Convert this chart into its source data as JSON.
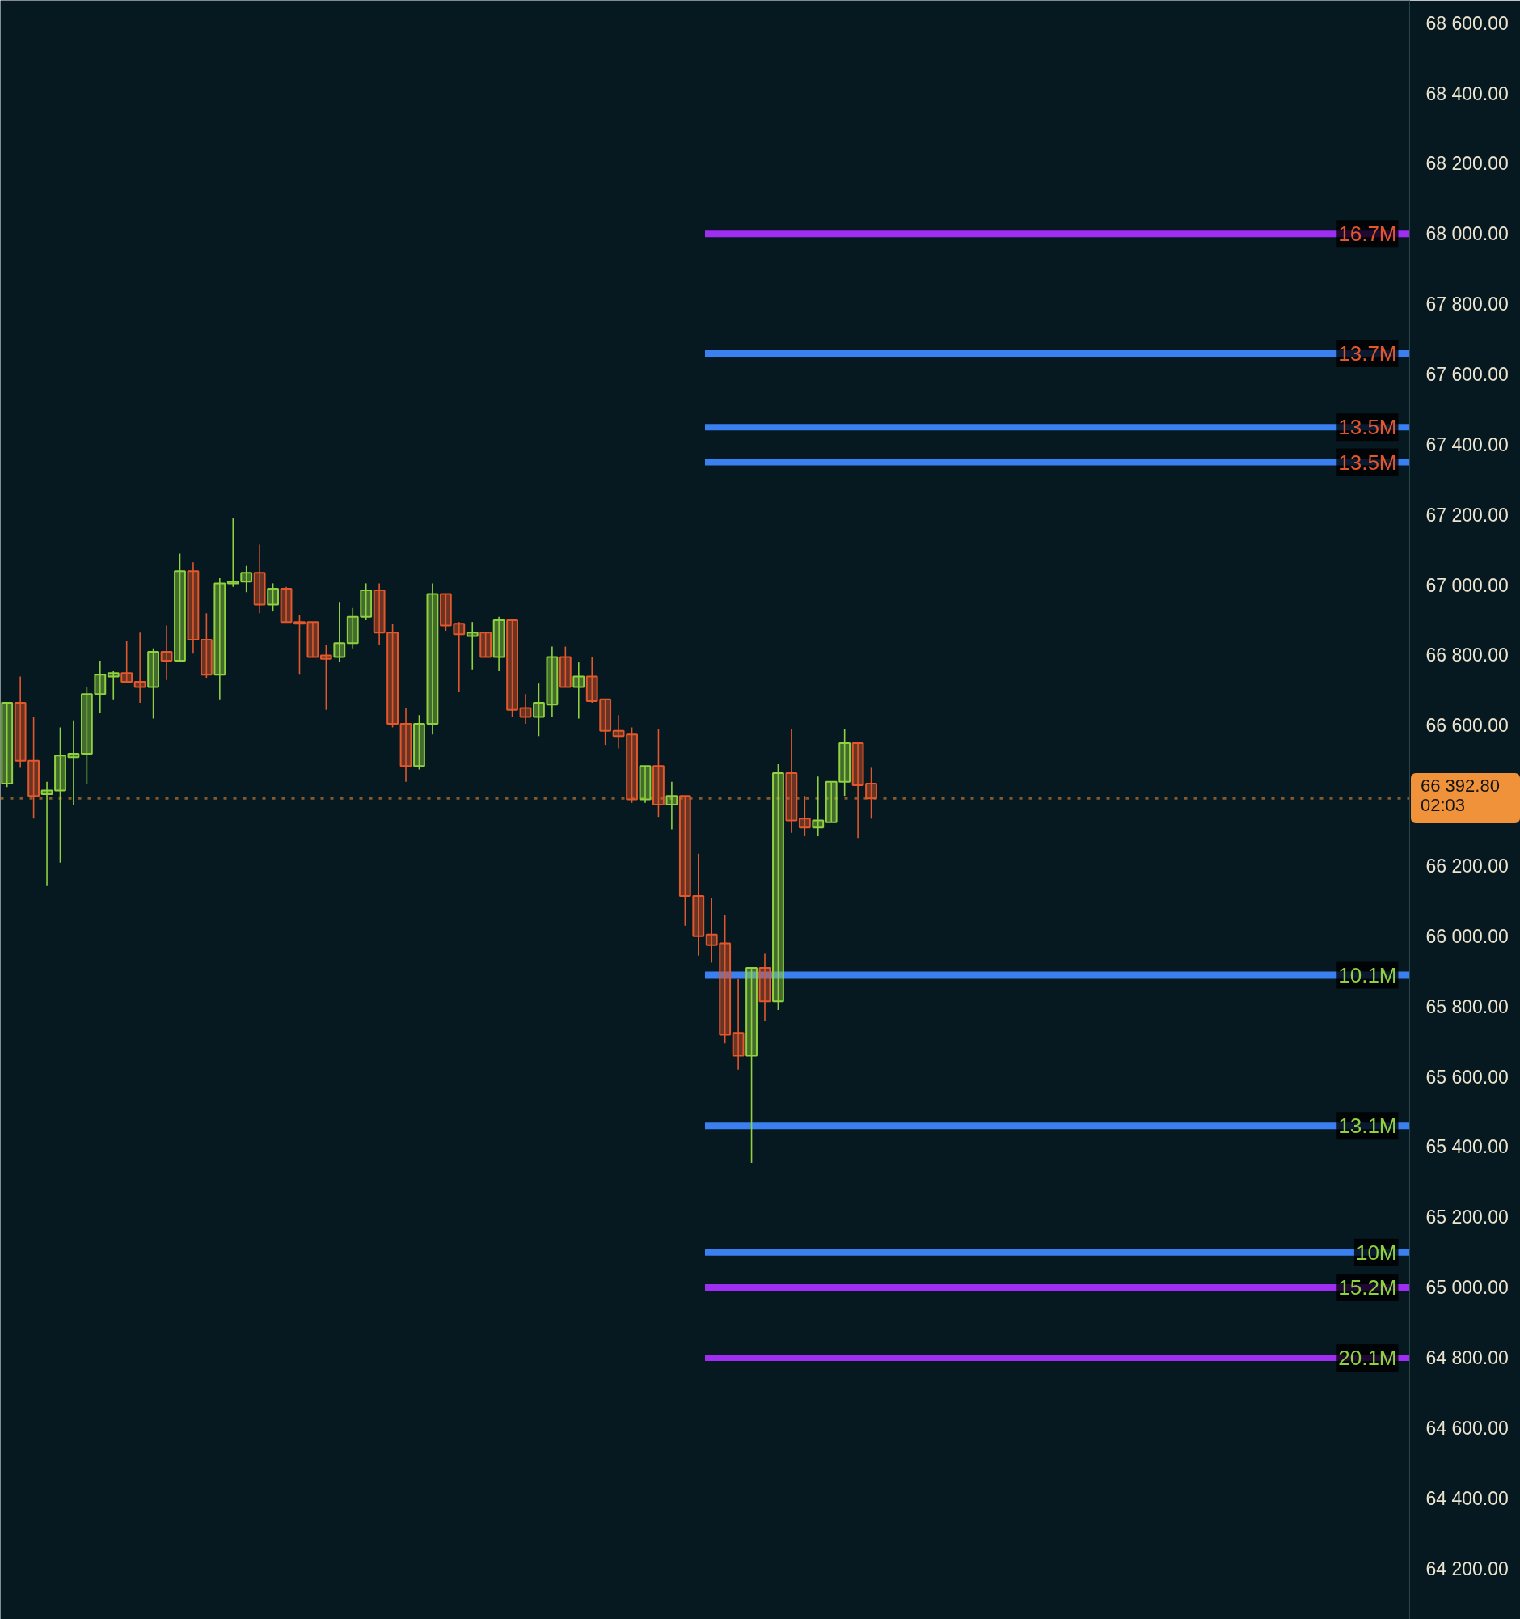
{
  "chart_data": {
    "type": "candlestick",
    "categories": [
      null,
      null,
      null,
      null,
      null,
      null,
      null,
      null,
      null,
      null,
      null,
      null,
      null,
      null,
      null,
      null,
      null,
      null,
      null,
      null,
      null,
      null,
      null,
      null,
      null,
      null,
      null,
      null,
      null,
      null,
      null,
      null,
      null,
      null,
      null,
      null,
      null,
      null,
      null,
      null,
      null,
      null,
      null,
      null,
      null,
      null,
      null,
      null,
      null,
      null,
      null,
      null,
      null,
      null,
      null,
      null,
      null,
      null,
      null,
      null,
      null,
      null,
      null,
      null,
      null,
      null,
      null,
      null,
      null,
      null,
      null,
      null,
      null,
      null,
      null,
      null,
      null,
      null,
      null,
      null,
      null,
      null,
      null,
      null,
      null,
      null,
      null,
      null,
      null,
      null,
      null,
      null,
      null,
      null,
      null,
      null,
      null,
      null,
      null,
      null,
      null,
      null,
      null,
      null,
      null,
      null
    ],
    "ohlc": [
      [
        66435,
        66665,
        66425,
        66665
      ],
      [
        66665,
        66740,
        66480,
        66500
      ],
      [
        66500,
        66625,
        66335,
        66400
      ],
      [
        66405,
        66440,
        66145,
        66415
      ],
      [
        66415,
        66595,
        66210,
        66515
      ],
      [
        66510,
        66615,
        66375,
        66520
      ],
      [
        66520,
        66710,
        66435,
        66690
      ],
      [
        66690,
        66785,
        66635,
        66745
      ],
      [
        66740,
        66755,
        66675,
        66750
      ],
      [
        66750,
        66840,
        66725,
        66725
      ],
      [
        66725,
        66865,
        66665,
        66710
      ],
      [
        66710,
        66820,
        66620,
        66810
      ],
      [
        66810,
        66885,
        66730,
        66785
      ],
      [
        66785,
        67090,
        66785,
        67040
      ],
      [
        67040,
        67065,
        66805,
        66845
      ],
      [
        66845,
        66920,
        66735,
        66745
      ],
      [
        66745,
        67020,
        66675,
        67005
      ],
      [
        67005,
        67190,
        66995,
        67010
      ],
      [
        67010,
        67055,
        66980,
        67035
      ],
      [
        67035,
        67115,
        66920,
        66945
      ],
      [
        66945,
        67005,
        66925,
        66990
      ],
      [
        66990,
        66995,
        66895,
        66895
      ],
      [
        66895,
        66915,
        66745,
        66890
      ],
      [
        66895,
        66895,
        66795,
        66795
      ],
      [
        66800,
        66830,
        66645,
        66790
      ],
      [
        66795,
        66950,
        66780,
        66835
      ],
      [
        66835,
        66935,
        66820,
        66910
      ],
      [
        66910,
        67005,
        66900,
        66985
      ],
      [
        66985,
        67005,
        66830,
        66865
      ],
      [
        66865,
        66890,
        66595,
        66605
      ],
      [
        66605,
        66650,
        66440,
        66485
      ],
      [
        66485,
        66630,
        66475,
        66605
      ],
      [
        66605,
        67005,
        66575,
        66975
      ],
      [
        66975,
        66975,
        66870,
        66885
      ],
      [
        66890,
        66895,
        66695,
        66860
      ],
      [
        66855,
        66895,
        66760,
        66865
      ],
      [
        66865,
        66865,
        66795,
        66795
      ],
      [
        66795,
        66910,
        66755,
        66900
      ],
      [
        66900,
        66900,
        66625,
        66645
      ],
      [
        66650,
        66690,
        66605,
        66625
      ],
      [
        66625,
        66720,
        66570,
        66665
      ],
      [
        66660,
        66825,
        66625,
        66795
      ],
      [
        66795,
        66825,
        66710,
        66710
      ],
      [
        66710,
        66780,
        66620,
        66740
      ],
      [
        66740,
        66795,
        66665,
        66670
      ],
      [
        66675,
        66675,
        66545,
        66585
      ],
      [
        66585,
        66630,
        66535,
        66570
      ],
      [
        66575,
        66595,
        66380,
        66390
      ],
      [
        66390,
        66485,
        66380,
        66485
      ],
      [
        66485,
        66590,
        66340,
        66375
      ],
      [
        66375,
        66440,
        66305,
        66400
      ],
      [
        66400,
        66400,
        66030,
        66115
      ],
      [
        66115,
        66235,
        65945,
        66000
      ],
      [
        66005,
        66110,
        65925,
        65975
      ],
      [
        65980,
        66060,
        65695,
        65720
      ],
      [
        65725,
        65880,
        65620,
        65660
      ],
      [
        65660,
        65910,
        65355,
        65910
      ],
      [
        65910,
        65950,
        65760,
        65815
      ],
      [
        65815,
        66490,
        65790,
        66465
      ],
      [
        66465,
        66590,
        66295,
        66330
      ],
      [
        66335,
        66400,
        66285,
        66310
      ],
      [
        66310,
        66455,
        66285,
        66330
      ],
      [
        66325,
        66440,
        66325,
        66440
      ],
      [
        66440,
        66590,
        66400,
        66550
      ],
      [
        66550,
        66550,
        66280,
        66430
      ],
      [
        66435,
        66480,
        66335,
        66392.8
      ],
      null,
      null,
      null,
      null,
      null,
      null,
      null,
      null,
      null,
      null,
      null,
      null,
      null,
      null,
      null,
      null,
      null,
      null,
      null,
      null,
      null,
      null,
      null,
      null,
      null,
      null,
      null,
      null,
      null,
      null,
      null,
      null,
      null,
      null,
      null,
      null,
      null,
      null,
      null,
      null
    ],
    "colors": [
      "#8fd13f",
      "#e2572b",
      "#e2572b",
      "#8fd13f",
      "#8fd13f",
      "#8fd13f",
      "#8fd13f",
      "#8fd13f",
      "#8fd13f",
      "#e2572b",
      "#e2572b",
      "#8fd13f",
      "#e2572b",
      "#8fd13f",
      "#e2572b",
      "#e2572b",
      "#8fd13f",
      "#8fd13f",
      "#8fd13f",
      "#e2572b",
      "#8fd13f",
      "#e2572b",
      "#e2572b",
      "#e2572b",
      "#e2572b",
      "#8fd13f",
      "#8fd13f",
      "#8fd13f",
      "#e2572b",
      "#e2572b",
      "#e2572b",
      "#8fd13f",
      "#8fd13f",
      "#e2572b",
      "#e2572b",
      "#8fd13f",
      "#e2572b",
      "#8fd13f",
      "#e2572b",
      "#e2572b",
      "#8fd13f",
      "#8fd13f",
      "#e2572b",
      "#8fd13f",
      "#e2572b",
      "#e2572b",
      "#e2572b",
      "#e2572b",
      "#8fd13f",
      "#e2572b",
      "#8fd13f",
      "#e2572b",
      "#e2572b",
      "#e2572b",
      "#e2572b",
      "#e2572b",
      "#8fd13f",
      "#e2572b",
      "#8fd13f",
      "#e2572b",
      "#e2572b",
      "#8fd13f",
      "#8fd13f",
      "#8fd13f",
      "#e2572b",
      "#e2572b",
      null,
      null,
      null,
      null,
      null,
      null,
      null,
      null,
      null,
      null,
      null,
      null,
      null,
      null,
      null,
      null,
      null,
      null,
      null,
      null,
      null,
      null,
      null,
      null,
      null,
      null,
      null,
      null,
      null,
      null,
      null,
      null,
      null,
      null,
      null,
      null,
      null,
      null,
      null,
      null
    ],
    "ylim": [
      64055,
      68665
    ],
    "yticks": [
      {
        "value": 64200,
        "label": "64 200.00"
      },
      {
        "value": 64400,
        "label": "64 400.00"
      },
      {
        "value": 64600,
        "label": "64 600.00"
      },
      {
        "value": 64800,
        "label": "64 800.00"
      },
      {
        "value": 65000,
        "label": "65 000.00"
      },
      {
        "value": 65200,
        "label": "65 200.00"
      },
      {
        "value": 65400,
        "label": "65 400.00"
      },
      {
        "value": 65600,
        "label": "65 600.00"
      },
      {
        "value": 65800,
        "label": "65 800.00"
      },
      {
        "value": 66000,
        "label": "66 000.00"
      },
      {
        "value": 66200,
        "label": "66 200.00"
      },
      {
        "value": 66400,
        "label": null
      },
      {
        "value": 66600,
        "label": "66 600.00"
      },
      {
        "value": 66800,
        "label": "66 800.00"
      },
      {
        "value": 67000,
        "label": "67 000.00"
      },
      {
        "value": 67200,
        "label": "67 200.00"
      },
      {
        "value": 67400,
        "label": "67 400.00"
      },
      {
        "value": 67600,
        "label": "67 600.00"
      },
      {
        "value": 67800,
        "label": "67 800.00"
      },
      {
        "value": 68000,
        "label": "68 000.00"
      },
      {
        "value": 68200,
        "label": "68 200.00"
      },
      {
        "value": 68400,
        "label": "68 400.00"
      },
      {
        "value": 68600,
        "label": "68 600.00"
      }
    ],
    "ref_lines": [
      {
        "axis": "y",
        "value": 68000,
        "label": "16.7M",
        "color": "#a02ef2",
        "line_style": "solid"
      },
      {
        "axis": "y",
        "value": 67660,
        "label": "13.7M",
        "color": "#3a80f0",
        "line_style": "solid"
      },
      {
        "axis": "y",
        "value": 67450,
        "label": "13.5M",
        "color": "#3a80f0",
        "line_style": "solid"
      },
      {
        "axis": "y",
        "value": 67350,
        "label": "13.5M",
        "color": "#3a80f0",
        "line_style": "solid"
      },
      {
        "axis": "y",
        "value": 65890,
        "label": "10.1M",
        "color": "#3a80f0",
        "line_style": "solid"
      },
      {
        "axis": "y",
        "value": 65460,
        "label": "13.1M",
        "color": "#3a80f0",
        "line_style": "solid"
      },
      {
        "axis": "y",
        "value": 65100,
        "label": "10M",
        "color": "#3a80f0",
        "line_style": "solid"
      },
      {
        "axis": "y",
        "value": 65000,
        "label": "15.2M",
        "color": "#a02ef2",
        "line_style": "solid"
      },
      {
        "axis": "y",
        "value": 64800,
        "label": "20.1M",
        "color": "#a02ef2",
        "line_style": "solid"
      },
      {
        "axis": "y",
        "value": 66392.8,
        "label": "66 392.80\n02:03",
        "color": "#f0923a",
        "line_style": "dotted"
      }
    ],
    "grid": false,
    "tick_labels": "y"
  }
}
